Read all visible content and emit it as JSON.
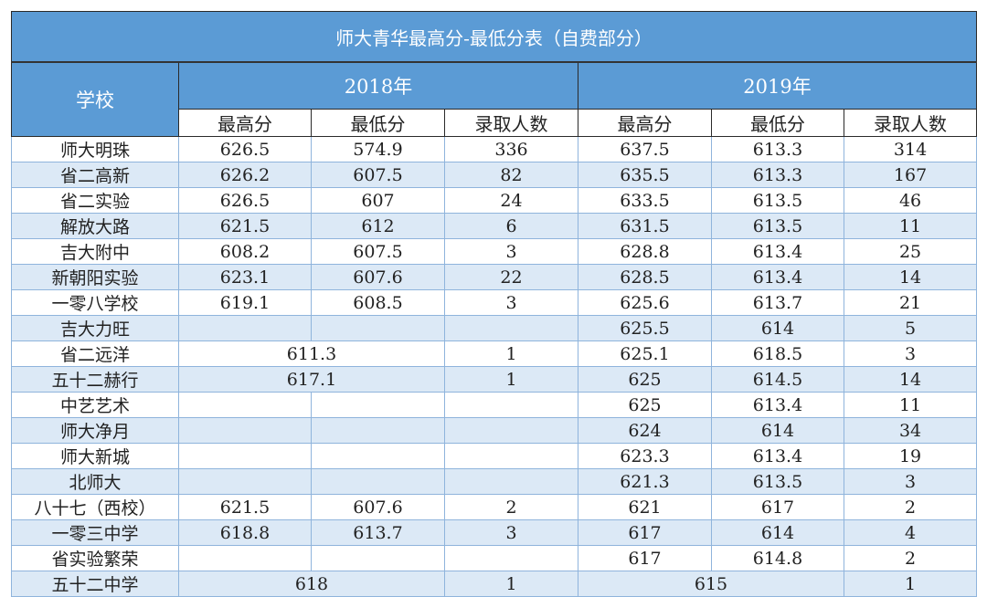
{
  "title": "师大青华最高分-最低分表（自费部分）",
  "header": {
    "school": "学校",
    "year_2018": "2018年",
    "year_2019": "2019年",
    "columns": [
      "最高分",
      "最低分",
      "录取人数",
      "最高分",
      "最低分",
      "录取人数"
    ]
  },
  "colors": {
    "header": "#5b9bd5",
    "row_alt": "#dce9f6"
  },
  "rows": [
    {
      "school": "师大明珠",
      "cells": [
        {
          "v": "626.5"
        },
        {
          "v": "574.9"
        },
        {
          "v": "336"
        },
        {
          "v": "637.5"
        },
        {
          "v": "613.3"
        },
        {
          "v": "314"
        }
      ]
    },
    {
      "school": "省二高新",
      "cells": [
        {
          "v": "626.2"
        },
        {
          "v": "607.5"
        },
        {
          "v": "82"
        },
        {
          "v": "635.5"
        },
        {
          "v": "613.3"
        },
        {
          "v": "167"
        }
      ]
    },
    {
      "school": "省二实验",
      "cells": [
        {
          "v": "626.5"
        },
        {
          "v": "607"
        },
        {
          "v": "24"
        },
        {
          "v": "633.5"
        },
        {
          "v": "613.5"
        },
        {
          "v": "46"
        }
      ]
    },
    {
      "school": "解放大路",
      "cells": [
        {
          "v": "621.5"
        },
        {
          "v": "612"
        },
        {
          "v": "6"
        },
        {
          "v": "631.5"
        },
        {
          "v": "613.5"
        },
        {
          "v": "11"
        }
      ]
    },
    {
      "school": "吉大附中",
      "cells": [
        {
          "v": "608.2"
        },
        {
          "v": "607.5"
        },
        {
          "v": "3"
        },
        {
          "v": "628.8"
        },
        {
          "v": "613.4"
        },
        {
          "v": "25"
        }
      ]
    },
    {
      "school": "新朝阳实验",
      "cells": [
        {
          "v": "623.1"
        },
        {
          "v": "607.6"
        },
        {
          "v": "22"
        },
        {
          "v": "628.5"
        },
        {
          "v": "613.4"
        },
        {
          "v": "14"
        }
      ]
    },
    {
      "school": "一零八学校",
      "cells": [
        {
          "v": "619.1"
        },
        {
          "v": "608.5"
        },
        {
          "v": "3"
        },
        {
          "v": "625.6"
        },
        {
          "v": "613.7"
        },
        {
          "v": "21"
        }
      ]
    },
    {
      "school": "吉大力旺",
      "cells": [
        {
          "v": ""
        },
        {
          "v": ""
        },
        {
          "v": ""
        },
        {
          "v": "625.5"
        },
        {
          "v": "614"
        },
        {
          "v": "5"
        }
      ]
    },
    {
      "school": "省二远洋",
      "cells": [
        {
          "v": "611.3",
          "span": 2
        },
        {
          "v": "1"
        },
        {
          "v": "625.1"
        },
        {
          "v": "618.5"
        },
        {
          "v": "3"
        }
      ]
    },
    {
      "school": "五十二赫行",
      "cells": [
        {
          "v": "617.1",
          "span": 2
        },
        {
          "v": "1"
        },
        {
          "v": "625"
        },
        {
          "v": "614.5"
        },
        {
          "v": "14"
        }
      ]
    },
    {
      "school": "中艺艺术",
      "cells": [
        {
          "v": ""
        },
        {
          "v": ""
        },
        {
          "v": ""
        },
        {
          "v": "625"
        },
        {
          "v": "613.4"
        },
        {
          "v": "11"
        }
      ]
    },
    {
      "school": "师大净月",
      "cells": [
        {
          "v": ""
        },
        {
          "v": ""
        },
        {
          "v": ""
        },
        {
          "v": "624"
        },
        {
          "v": "614"
        },
        {
          "v": "34"
        }
      ]
    },
    {
      "school": "师大新城",
      "cells": [
        {
          "v": ""
        },
        {
          "v": ""
        },
        {
          "v": ""
        },
        {
          "v": "623.3"
        },
        {
          "v": "613.4"
        },
        {
          "v": "19"
        }
      ]
    },
    {
      "school": "北师大",
      "cells": [
        {
          "v": ""
        },
        {
          "v": ""
        },
        {
          "v": ""
        },
        {
          "v": "621.3"
        },
        {
          "v": "613.5"
        },
        {
          "v": "3"
        }
      ]
    },
    {
      "school": "八十七（西校）",
      "cells": [
        {
          "v": "621.5"
        },
        {
          "v": "607.6"
        },
        {
          "v": "2"
        },
        {
          "v": "621"
        },
        {
          "v": "617"
        },
        {
          "v": "2"
        }
      ]
    },
    {
      "school": "一零三中学",
      "cells": [
        {
          "v": "618.8"
        },
        {
          "v": "613.7"
        },
        {
          "v": "3"
        },
        {
          "v": "617"
        },
        {
          "v": "614"
        },
        {
          "v": "4"
        }
      ]
    },
    {
      "school": "省实验繁荣",
      "cells": [
        {
          "v": ""
        },
        {
          "v": ""
        },
        {
          "v": ""
        },
        {
          "v": "617"
        },
        {
          "v": "614.8"
        },
        {
          "v": "2"
        }
      ]
    },
    {
      "school": "五十二中学",
      "cells": [
        {
          "v": "618",
          "span": 2
        },
        {
          "v": "1"
        },
        {
          "v": "615",
          "span": 2
        },
        {
          "v": "1"
        }
      ]
    }
  ]
}
